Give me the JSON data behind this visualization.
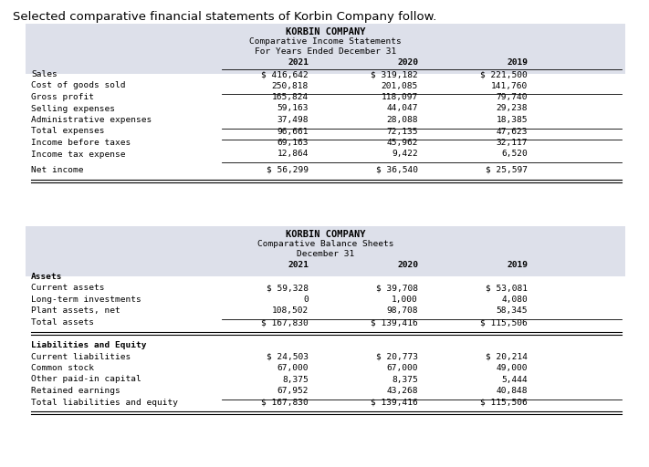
{
  "title_text": "Selected comparative financial statements of Korbin Company follow.",
  "table1": {
    "header_title": "KORBIN COMPANY",
    "header_sub1": "Comparative Income Statements",
    "header_sub2": "For Years Ended December 31",
    "col_headers": [
      "2021",
      "2020",
      "2019"
    ],
    "rows": [
      {
        "label": "Sales",
        "vals": [
          "$ 416,642",
          "$ 319,182",
          "$ 221,500"
        ],
        "bold": false,
        "top_line": true,
        "bottom_line": false,
        "double_bottom": false,
        "gap_before": false
      },
      {
        "label": "Cost of goods sold",
        "vals": [
          "250,818",
          "201,085",
          "141,760"
        ],
        "bold": false,
        "top_line": false,
        "bottom_line": true,
        "double_bottom": false,
        "gap_before": false
      },
      {
        "label": "Gross profit",
        "vals": [
          "165,824",
          "118,097",
          "79,740"
        ],
        "bold": false,
        "top_line": false,
        "bottom_line": false,
        "double_bottom": false,
        "gap_before": false
      },
      {
        "label": "Selling expenses",
        "vals": [
          "59,163",
          "44,047",
          "29,238"
        ],
        "bold": false,
        "top_line": false,
        "bottom_line": false,
        "double_bottom": false,
        "gap_before": false
      },
      {
        "label": "Administrative expenses",
        "vals": [
          "37,498",
          "28,088",
          "18,385"
        ],
        "bold": false,
        "top_line": false,
        "bottom_line": true,
        "double_bottom": false,
        "gap_before": false
      },
      {
        "label": "Total expenses",
        "vals": [
          "96,661",
          "72,135",
          "47,623"
        ],
        "bold": false,
        "top_line": false,
        "bottom_line": true,
        "double_bottom": false,
        "gap_before": false
      },
      {
        "label": "Income before taxes",
        "vals": [
          "69,163",
          "45,962",
          "32,117"
        ],
        "bold": false,
        "top_line": false,
        "bottom_line": false,
        "double_bottom": false,
        "gap_before": false
      },
      {
        "label": "Income tax expense",
        "vals": [
          "12,864",
          "9,422",
          "6,520"
        ],
        "bold": false,
        "top_line": false,
        "bottom_line": true,
        "double_bottom": false,
        "gap_before": false
      },
      {
        "label": "Net income",
        "vals": [
          "$ 56,299",
          "$ 36,540",
          "$ 25,597"
        ],
        "bold": false,
        "top_line": false,
        "bottom_line": false,
        "double_bottom": true,
        "gap_before": true
      }
    ]
  },
  "table2": {
    "header_title": "KORBIN COMPANY",
    "header_sub1": "Comparative Balance Sheets",
    "header_sub2": "December 31",
    "col_headers": [
      "2021",
      "2020",
      "2019"
    ],
    "rows": [
      {
        "label": "Assets",
        "vals": [
          "",
          "",
          ""
        ],
        "bold": true,
        "top_line": false,
        "bottom_line": false,
        "double_bottom": false,
        "gap_before": false
      },
      {
        "label": "Current assets",
        "vals": [
          "$ 59,328",
          "$ 39,708",
          "$ 53,081"
        ],
        "bold": false,
        "top_line": false,
        "bottom_line": false,
        "double_bottom": false,
        "gap_before": false
      },
      {
        "label": "Long-term investments",
        "vals": [
          "0",
          "1,000",
          "4,080"
        ],
        "bold": false,
        "top_line": false,
        "bottom_line": false,
        "double_bottom": false,
        "gap_before": false
      },
      {
        "label": "Plant assets, net",
        "vals": [
          "108,502",
          "98,708",
          "58,345"
        ],
        "bold": false,
        "top_line": false,
        "bottom_line": true,
        "double_bottom": false,
        "gap_before": false
      },
      {
        "label": "Total assets",
        "vals": [
          "$ 167,830",
          "$ 139,416",
          "$ 115,506"
        ],
        "bold": false,
        "top_line": false,
        "bottom_line": false,
        "double_bottom": true,
        "gap_before": false
      },
      {
        "label": "",
        "vals": [
          "",
          "",
          ""
        ],
        "bold": false,
        "top_line": false,
        "bottom_line": false,
        "double_bottom": false,
        "gap_before": false
      },
      {
        "label": "Liabilities and Equity",
        "vals": [
          "",
          "",
          ""
        ],
        "bold": true,
        "top_line": false,
        "bottom_line": false,
        "double_bottom": false,
        "gap_before": false
      },
      {
        "label": "Current liabilities",
        "vals": [
          "$ 24,503",
          "$ 20,773",
          "$ 20,214"
        ],
        "bold": false,
        "top_line": false,
        "bottom_line": false,
        "double_bottom": false,
        "gap_before": false
      },
      {
        "label": "Common stock",
        "vals": [
          "67,000",
          "67,000",
          "49,000"
        ],
        "bold": false,
        "top_line": false,
        "bottom_line": false,
        "double_bottom": false,
        "gap_before": false
      },
      {
        "label": "Other paid-in capital",
        "vals": [
          "8,375",
          "8,375",
          "5,444"
        ],
        "bold": false,
        "top_line": false,
        "bottom_line": false,
        "double_bottom": false,
        "gap_before": false
      },
      {
        "label": "Retained earnings",
        "vals": [
          "67,952",
          "43,268",
          "40,848"
        ],
        "bold": false,
        "top_line": false,
        "bottom_line": true,
        "double_bottom": false,
        "gap_before": false
      },
      {
        "label": "Total liabilities and equity",
        "vals": [
          "$ 167,830",
          "$ 139,416",
          "$ 115,506"
        ],
        "bold": false,
        "top_line": false,
        "bottom_line": false,
        "double_bottom": true,
        "gap_before": false
      }
    ]
  },
  "table_bg": "#dde0ea",
  "white_bg": "#ffffff",
  "font_size": 6.8,
  "header_font_size": 7.5,
  "title_font_size": 9.5
}
